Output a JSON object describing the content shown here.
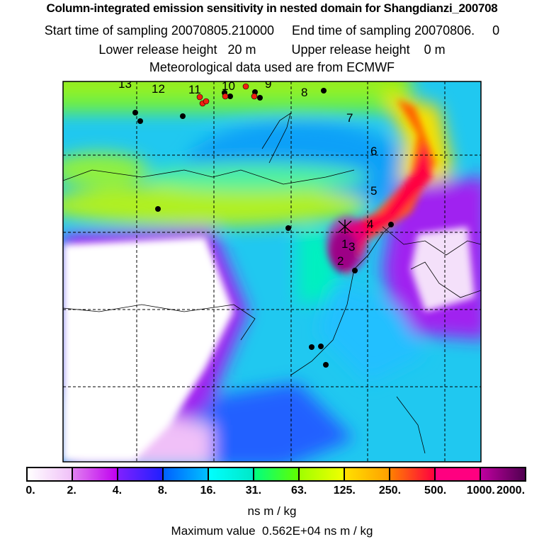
{
  "header": {
    "title": "Column-integrated emission sensitivity in nested domain for Shangdianzi_200708",
    "sampling": "Start time of sampling 20070805.210000     End time of sampling 20070806.     0",
    "release": "Lower release height   20 m          Upper release height    0 m",
    "met": "Meteorological data used are from ECMWF"
  },
  "chart_data": {
    "type": "heatmap",
    "title": "Column-integrated emission sensitivity in nested domain for Shangdianzi_200708",
    "colorbar": {
      "ticks": [
        "0.",
        "2.",
        "4.",
        "8.",
        "16.",
        "31.",
        "63.",
        "125.",
        "250.",
        "500.",
        "1000.",
        "2000."
      ],
      "segments": [
        [
          "#ffffff",
          "#f0c0f8"
        ],
        [
          "#e080f0",
          "#c000f0"
        ],
        [
          "#8020ff",
          "#2020ff"
        ],
        [
          "#0060ff",
          "#00c0ff"
        ],
        [
          "#00ffff",
          "#00e8c8"
        ],
        [
          "#00ff80",
          "#60ff00"
        ],
        [
          "#a0ff00",
          "#f0ff00"
        ],
        [
          "#ffe000",
          "#ffa000"
        ],
        [
          "#ff8000",
          "#ff0040"
        ],
        [
          "#ff0080",
          "#ff0080"
        ],
        [
          "#c000a0",
          "#500050"
        ]
      ],
      "unit": "ns m / kg"
    },
    "max_value": "Maximum value  0.562E+04 ns m / kg",
    "release_point_labels": [
      "13",
      "12",
      "11",
      "10",
      "9",
      "8",
      "7",
      "6",
      "5",
      "4",
      "3",
      "2",
      "1"
    ]
  }
}
